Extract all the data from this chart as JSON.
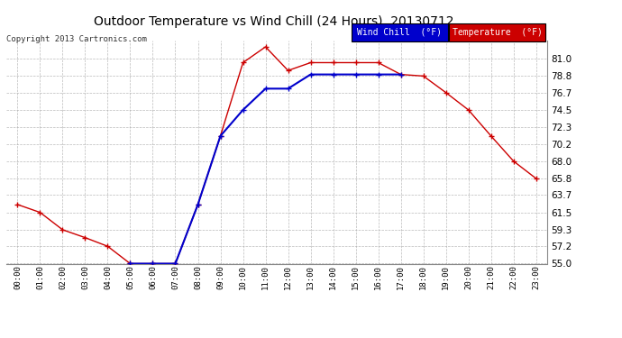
{
  "title": "Outdoor Temperature vs Wind Chill (24 Hours)  20130712",
  "copyright": "Copyright 2013 Cartronics.com",
  "background_color": "#ffffff",
  "grid_color": "#aaaaaa",
  "hours": [
    "00:00",
    "01:00",
    "02:00",
    "03:00",
    "04:00",
    "05:00",
    "06:00",
    "07:00",
    "08:00",
    "09:00",
    "10:00",
    "11:00",
    "12:00",
    "13:00",
    "14:00",
    "15:00",
    "16:00",
    "17:00",
    "18:00",
    "19:00",
    "20:00",
    "21:00",
    "22:00",
    "23:00"
  ],
  "temperature": [
    62.5,
    61.5,
    59.3,
    58.3,
    57.2,
    55.0,
    55.0,
    55.0,
    62.5,
    71.2,
    80.5,
    82.5,
    79.5,
    80.5,
    80.5,
    80.5,
    80.5,
    79.0,
    78.8,
    76.7,
    74.5,
    71.2,
    68.0,
    65.8
  ],
  "wind_chill": [
    null,
    null,
    null,
    null,
    null,
    55.0,
    55.0,
    55.0,
    62.5,
    71.2,
    74.5,
    77.2,
    77.2,
    79.0,
    79.0,
    79.0,
    79.0,
    79.0,
    null,
    null,
    null,
    null,
    null,
    null
  ],
  "temp_color": "#cc0000",
  "wind_color": "#0000cc",
  "ylim_min": 55.0,
  "ylim_max": 83.3,
  "yticks": [
    55.0,
    57.2,
    59.3,
    61.5,
    63.7,
    65.8,
    68.0,
    70.2,
    72.3,
    74.5,
    76.7,
    78.8,
    81.0
  ],
  "legend_wind_bg": "#0000cc",
  "legend_temp_bg": "#cc0000",
  "legend_text_color": "#ffffff",
  "marker": "+",
  "marker_size": 4,
  "line_width": 1.0
}
